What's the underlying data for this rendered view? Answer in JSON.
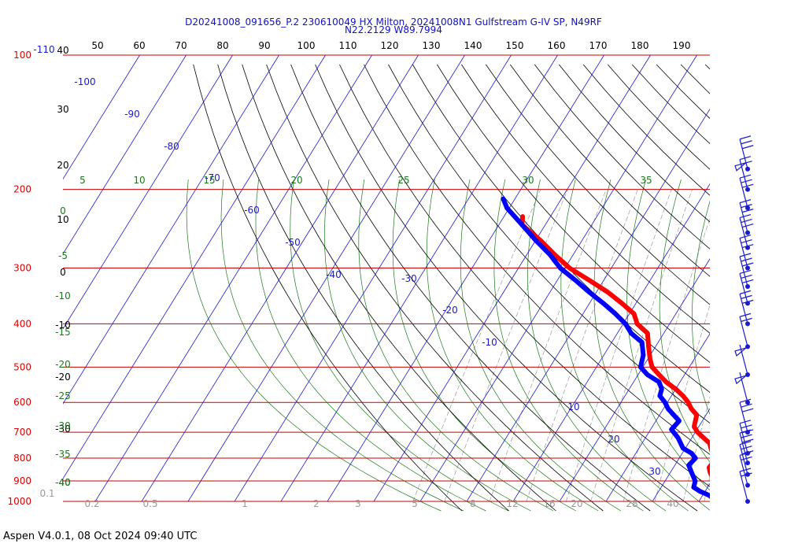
{
  "header": {
    "line1": "D20241008_091656_P.2 230610049 HX Milton, 20241008N1 Gulfstream G-IV SP, N49RF",
    "line2": "N22.2129 W89.7994"
  },
  "footer": {
    "text": "Aspen V4.0.1, 08 Oct 2024  09:40 UTC"
  },
  "chart_data": {
    "type": "line",
    "title": "D20241008_091656_P.2 230610049 HX Milton, 20241008N1 Gulfstream G-IV SP, N49RF",
    "subtitle": "N22.2129 W89.7994",
    "xlabel": "",
    "ylabel": "",
    "skewt_temperature_ticks_c": [
      -110,
      -100,
      -90,
      -80,
      -70,
      -60,
      -50,
      -40,
      -30,
      -20,
      -10,
      10,
      20,
      30
    ],
    "skewt_temperature_ticks_text": [
      "-110",
      "-100",
      "-90",
      "-80",
      "-70",
      "-60",
      "-50",
      "-40",
      "-30",
      "-20",
      "-10",
      "10",
      "20",
      "30"
    ],
    "pressure_levels_hpa": [
      100,
      200,
      300,
      400,
      500,
      600,
      700,
      800,
      900,
      1000
    ],
    "pressure_labels": [
      "100",
      "200",
      "300",
      "400",
      "500",
      "600",
      "700",
      "800",
      "900",
      "1000"
    ],
    "top_scale_ticks": [
      "50",
      "60",
      "70",
      "80",
      "90",
      "100",
      "110",
      "120",
      "130",
      "140",
      "150",
      "160",
      "170",
      "180",
      "190"
    ],
    "left_black_scale": [
      "40",
      "30",
      "20",
      "10",
      "0",
      "-10",
      "-20",
      "-30",
      "-40"
    ],
    "left_green_scale": [
      "0",
      "-5",
      "-10",
      "-15",
      "-20",
      "-25",
      "-30",
      "-35",
      "-40"
    ],
    "moist_adiabat_labels": [
      "5",
      "10",
      "15",
      "20",
      "25",
      "30",
      "35"
    ],
    "mixing_ratio_labels": [
      "0.1",
      "0.2",
      "0.5",
      "1",
      "2",
      "3",
      "5",
      "8",
      "12",
      "16",
      "20",
      "28",
      "40"
    ],
    "series": [
      {
        "color": "#ff0000",
        "x_temperature_c": [
          27.8,
          26.0,
          25.3,
          24.3,
          23.3,
          22.0,
          20.5,
          19.5,
          18.5,
          17.7,
          17.8,
          17.5,
          16.5,
          15.5,
          14.5,
          12.5,
          10.5,
          9.0,
          8.5,
          8.0,
          6.0,
          4.5,
          2.5,
          0.0,
          -3.0,
          -5.5,
          -8.0,
          -9.5,
          -11.5,
          -13.5,
          -17.0,
          -19.0,
          -23.0,
          -27.5,
          -33.0,
          -39.0,
          -44.0,
          -49.0,
          -55.0,
          -56.0
        ],
        "y_pressure_hpa": [
          1010,
          1000,
          990,
          970,
          950,
          920,
          900,
          880,
          860,
          840,
          820,
          800,
          780,
          760,
          740,
          720,
          700,
          680,
          660,
          640,
          620,
          600,
          580,
          560,
          540,
          520,
          500,
          480,
          450,
          420,
          400,
          380,
          360,
          340,
          320,
          300,
          280,
          260,
          240,
          230
        ]
      },
      {
        "color": "#0000ff",
        "x_temperature_c": [
          23.2,
          23.0,
          21.5,
          19.0,
          17.0,
          16.5,
          15.5,
          14.5,
          13.0,
          13.5,
          12.0,
          9.5,
          7.0,
          4.5,
          5.0,
          1.0,
          -0.5,
          -2.5,
          -3.0,
          -4.5,
          -8.0,
          -10.5,
          -11.5,
          -13.5,
          -17.0,
          -19.5,
          -23.0,
          -27.0,
          -31.5,
          -36.0,
          -41.0,
          -45.0,
          -50.0,
          -55.0,
          -60.5,
          -62.5
        ],
        "y_pressure_hpa": [
          1005,
          990,
          970,
          950,
          930,
          900,
          880,
          860,
          830,
          800,
          780,
          760,
          720,
          690,
          660,
          620,
          600,
          580,
          560,
          540,
          520,
          500,
          470,
          440,
          420,
          400,
          380,
          360,
          340,
          320,
          300,
          280,
          260,
          240,
          220,
          210
        ]
      }
    ],
    "wind_barbs": [
      {
        "p": 180,
        "barb_count": 3,
        "flag_count": 0
      },
      {
        "p": 200,
        "barb_count": 2,
        "flag_count": 1
      },
      {
        "p": 220,
        "barb_count": 3,
        "flag_count": 0
      },
      {
        "p": 250,
        "barb_count": 3,
        "flag_count": 0
      },
      {
        "p": 270,
        "barb_count": 3,
        "flag_count": 0
      },
      {
        "p": 300,
        "barb_count": 3,
        "flag_count": 0
      },
      {
        "p": 330,
        "barb_count": 3,
        "flag_count": 0
      },
      {
        "p": 360,
        "barb_count": 3,
        "flag_count": 0
      },
      {
        "p": 400,
        "barb_count": 3,
        "flag_count": 0
      },
      {
        "p": 450,
        "barb_count": 2,
        "flag_count": 0
      },
      {
        "p": 520,
        "barb_count": 0,
        "flag_count": 1
      },
      {
        "p": 600,
        "barb_count": 0,
        "flag_count": 1
      },
      {
        "p": 700,
        "barb_count": 3,
        "flag_count": 0
      },
      {
        "p": 780,
        "barb_count": 3,
        "flag_count": 0
      },
      {
        "p": 820,
        "barb_count": 3,
        "flag_count": 0
      },
      {
        "p": 870,
        "barb_count": 3,
        "flag_count": 0
      },
      {
        "p": 920,
        "barb_count": 2,
        "flag_count": 0
      },
      {
        "p": 1000,
        "barb_count": 2,
        "flag_count": 0
      }
    ]
  }
}
